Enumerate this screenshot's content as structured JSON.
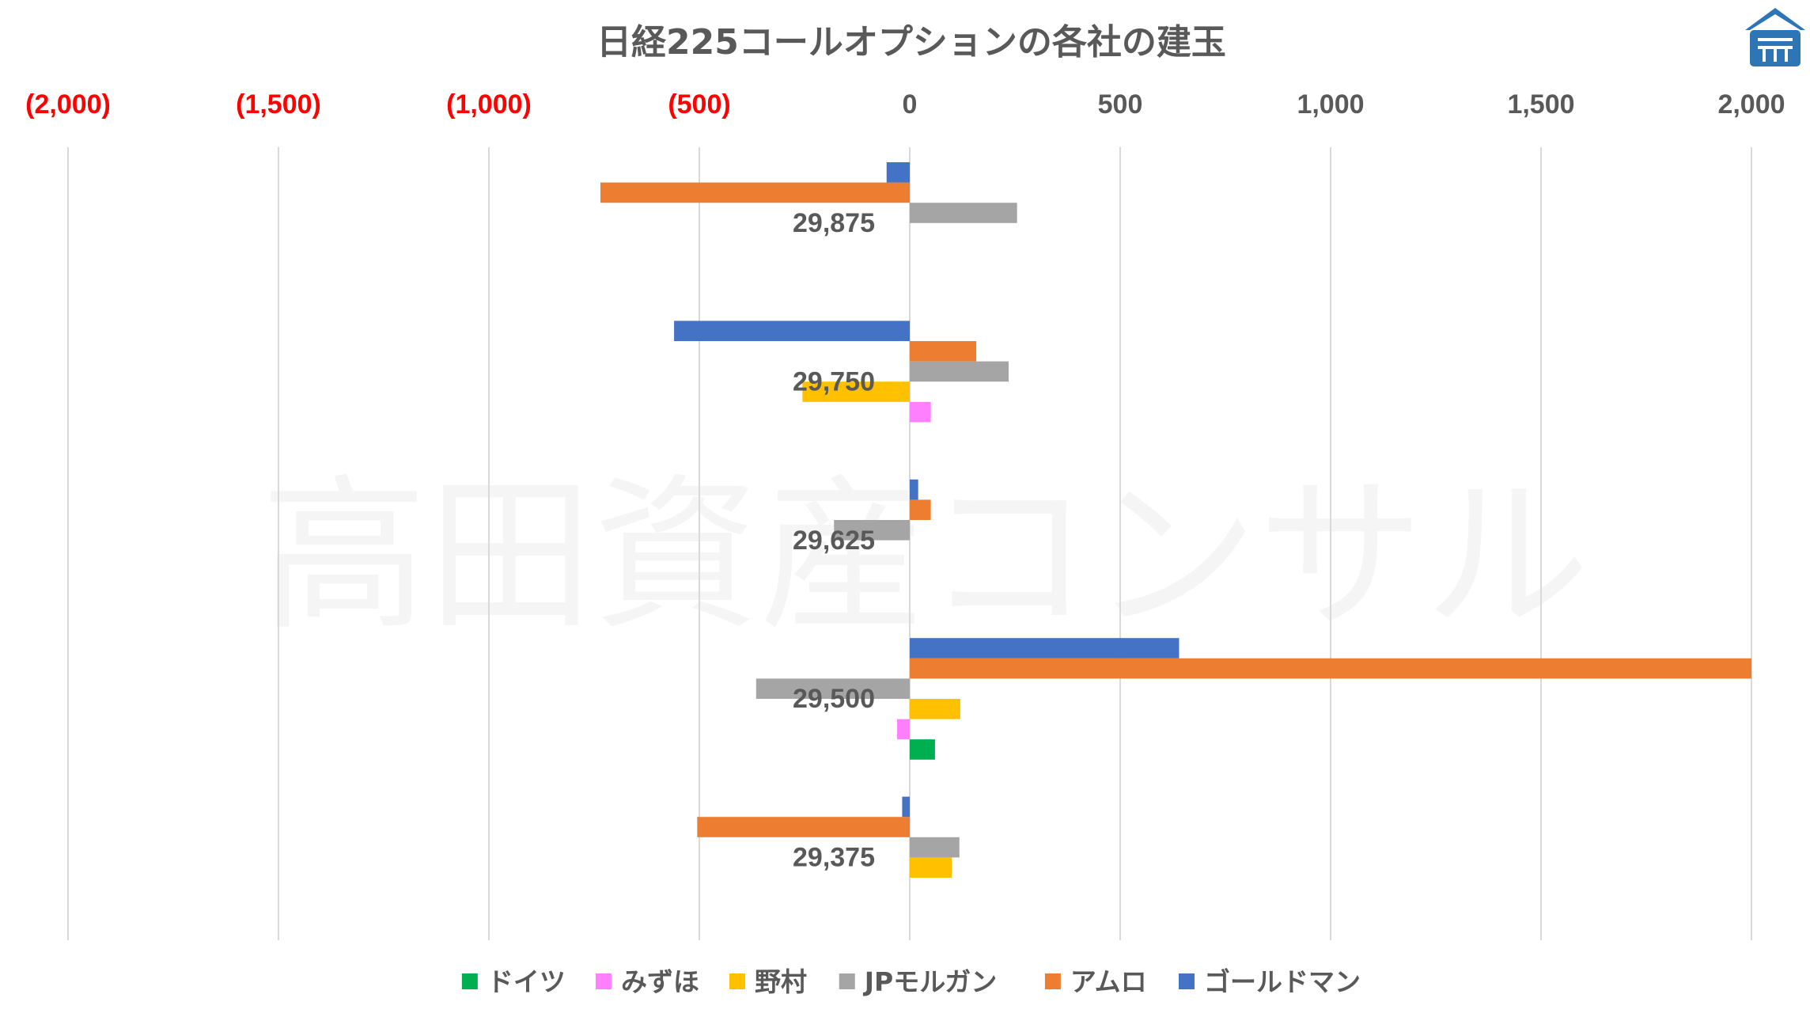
{
  "chart_data": {
    "type": "bar",
    "orientation": "horizontal",
    "title": "日経225コールオプションの各社の建玉",
    "watermark": "高田資産コンサル",
    "xlim": [
      -2000,
      2000
    ],
    "x_ticks": [
      {
        "value": -2000,
        "label": "(2,000)"
      },
      {
        "value": -1500,
        "label": "(1,500)"
      },
      {
        "value": -1000,
        "label": "(1,000)"
      },
      {
        "value": -500,
        "label": "(500)"
      },
      {
        "value": 0,
        "label": "0"
      },
      {
        "value": 500,
        "label": "500"
      },
      {
        "value": 1000,
        "label": "1,000"
      },
      {
        "value": 1500,
        "label": "1,500"
      },
      {
        "value": 2000,
        "label": "2,000"
      }
    ],
    "negative_tick_color": "#ff0000",
    "positive_tick_color": "#595959",
    "grid": "vertical",
    "legend_position": "bottom",
    "categories": [
      "29,875",
      "29,750",
      "29,625",
      "29,500",
      "29,375"
    ],
    "series": [
      {
        "name": "ドイツ",
        "color": "#00b050",
        "values": [
          0,
          0,
          0,
          60,
          0
        ]
      },
      {
        "name": "みずほ",
        "color": "#ff80ff",
        "values": [
          0,
          50,
          0,
          -30,
          0
        ]
      },
      {
        "name": "野村",
        "color": "#ffc000",
        "values": [
          0,
          -255,
          0,
          120,
          100
        ]
      },
      {
        "name": "JPモルガン",
        "color": "#a5a5a5",
        "values": [
          255,
          235,
          -180,
          -365,
          118
        ]
      },
      {
        "name": "アムロ",
        "color": "#ed7d31",
        "values": [
          -735,
          158,
          50,
          2000,
          -505
        ]
      },
      {
        "name": "ゴールドマン",
        "color": "#4472c4",
        "values": [
          -55,
          -560,
          20,
          640,
          -18
        ]
      }
    ]
  }
}
